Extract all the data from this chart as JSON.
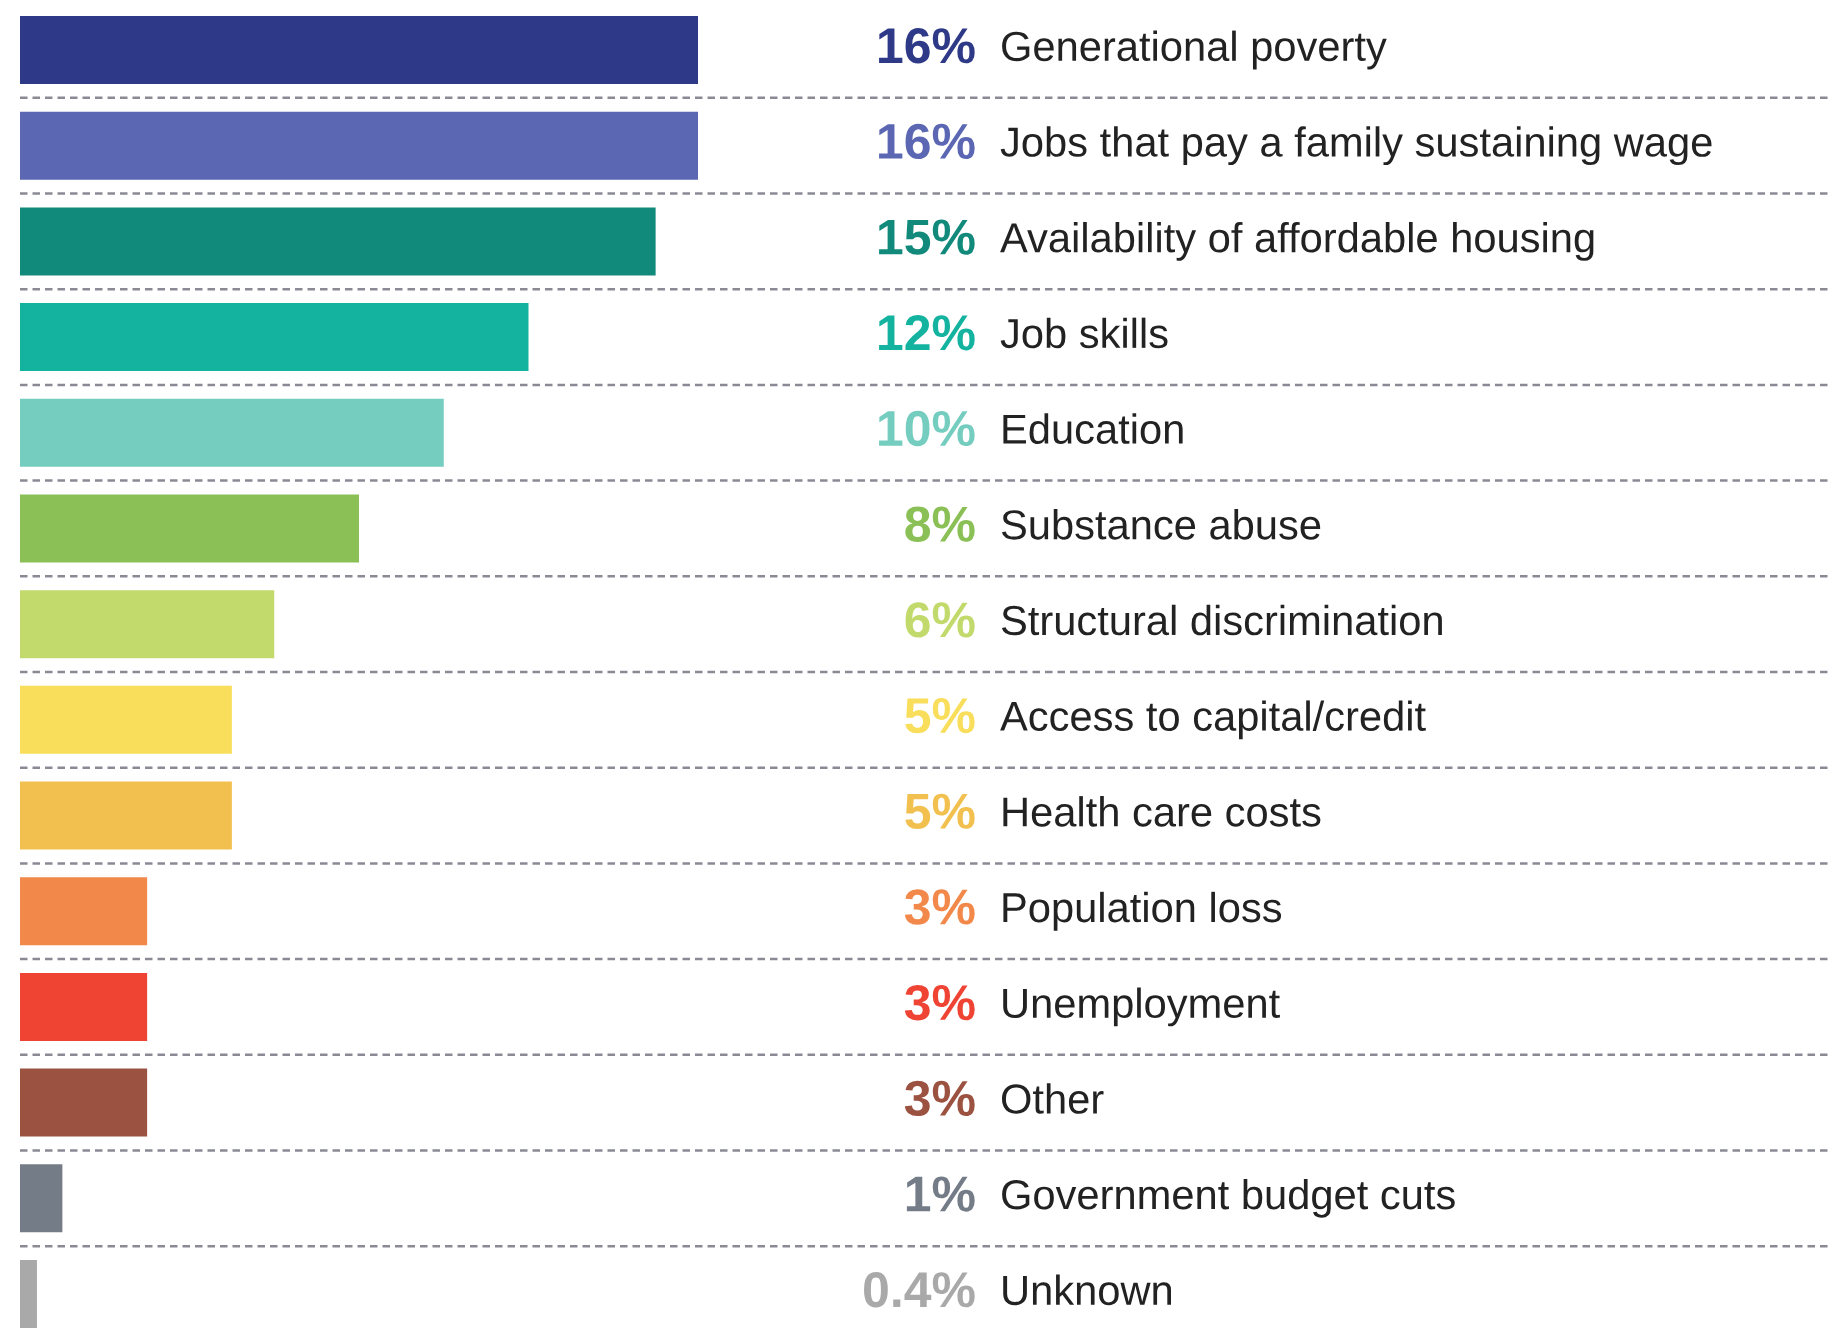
{
  "chart_data": {
    "type": "bar",
    "orientation": "horizontal",
    "categories": [
      "Generational poverty",
      "Jobs that pay a family sustaining wage",
      "Availability of affordable housing",
      "Job skills",
      "Education",
      "Substance abuse",
      "Structural discrimination",
      "Access to capital/credit",
      "Health care costs",
      "Population loss",
      "Unemployment",
      "Other",
      "Government budget cuts",
      "Unknown"
    ],
    "values": [
      16,
      16,
      15,
      12,
      10,
      8,
      6,
      5,
      5,
      3,
      3,
      3,
      1,
      0.4
    ],
    "value_labels": [
      "16%",
      "16%",
      "15%",
      "12%",
      "10%",
      "8%",
      "6%",
      "5%",
      "5%",
      "3%",
      "3%",
      "3%",
      "1%",
      "0.4%"
    ],
    "colors": [
      "#2e3a87",
      "#5b67b3",
      "#128a7b",
      "#14b3a0",
      "#74cdbf",
      "#8bc057",
      "#c2d96b",
      "#f8de5a",
      "#f2c04f",
      "#f2894b",
      "#ef4433",
      "#9c5240",
      "#737c87",
      "#a9a9a9"
    ]
  }
}
